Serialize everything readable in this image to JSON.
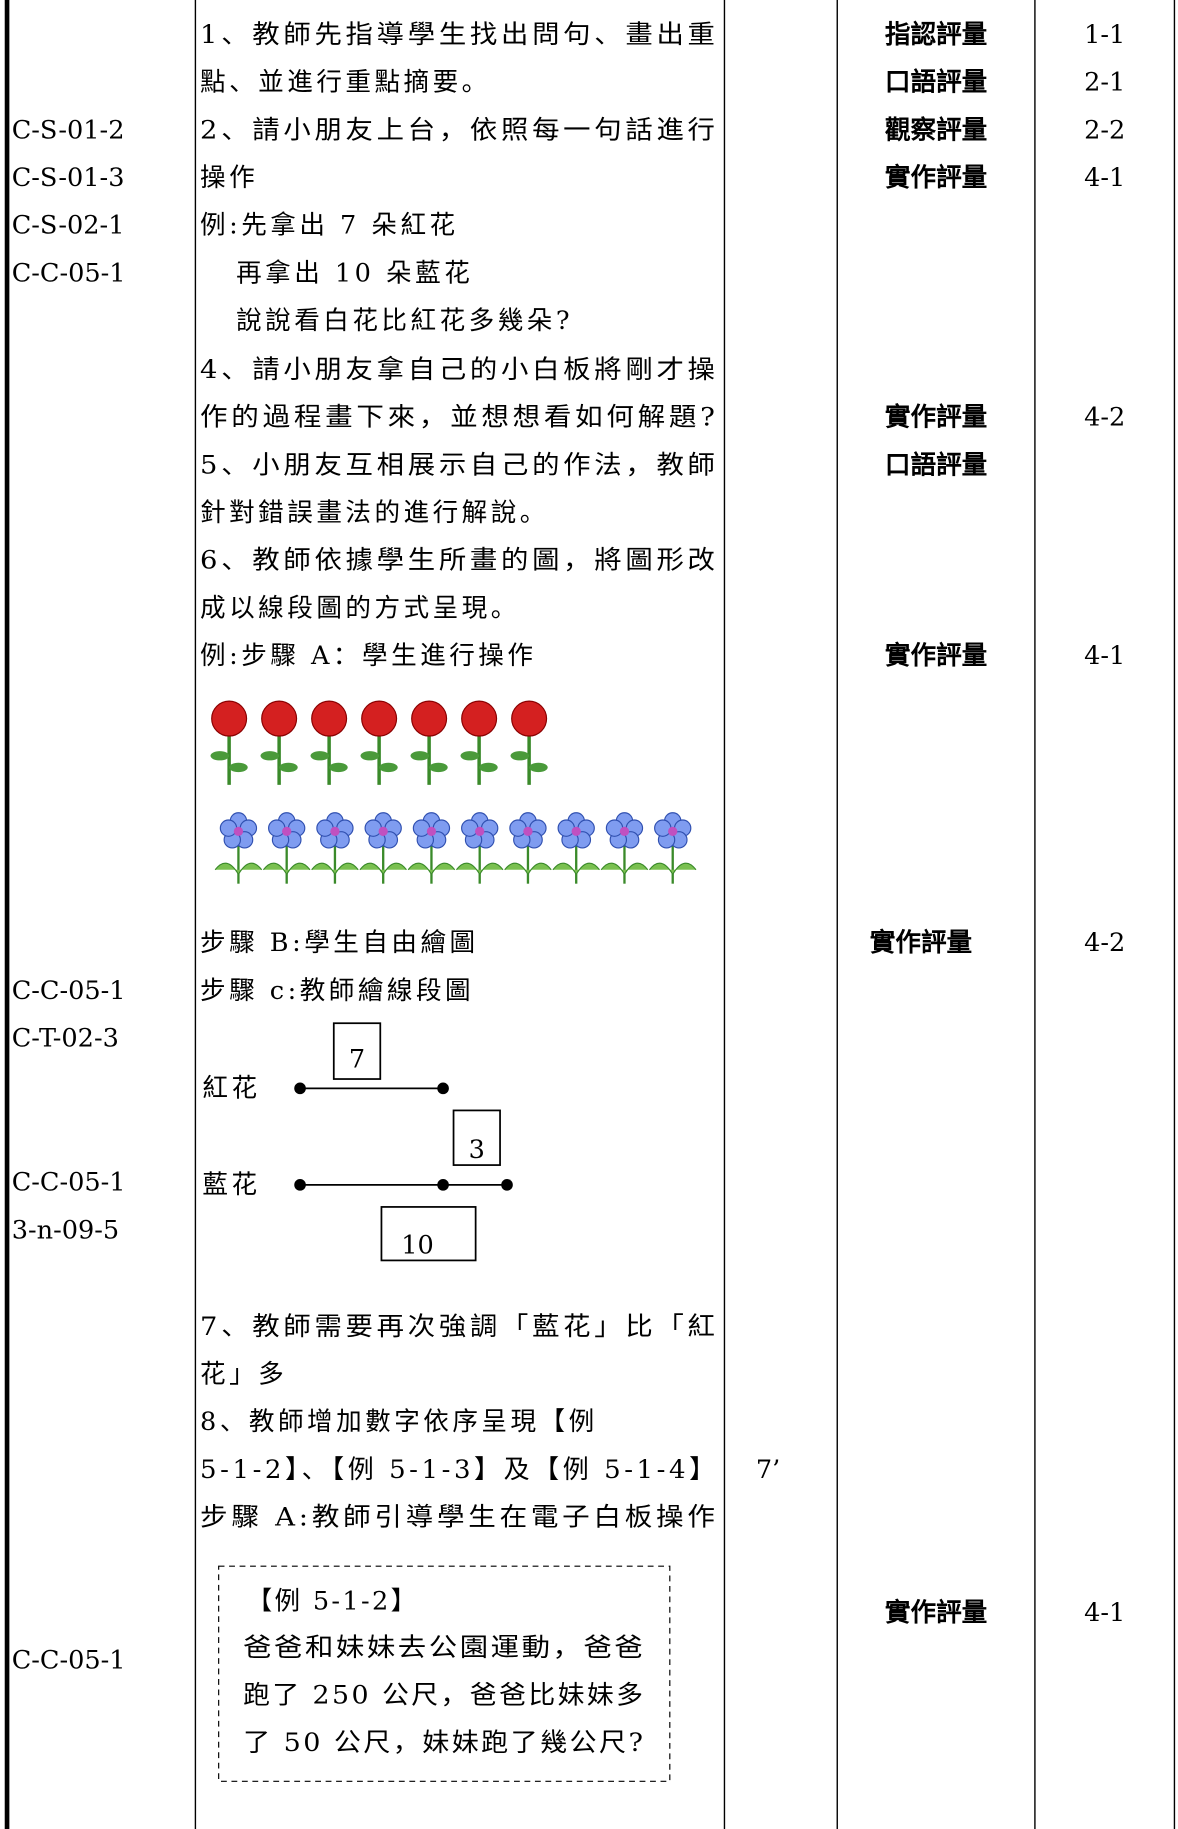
{
  "codes": [
    "C-S-01-2",
    "C-S-01-3",
    "C-S-02-1",
    "C-C-05-1",
    "C-C-05-1",
    "C-T-02-3",
    "C-C-05-1",
    "3-n-09-5",
    "C-C-05-1"
  ],
  "content": [
    "1、教師先指導學生找出問句、畫出重",
    "點、並進行重點摘要。",
    "2、請小朋友上台，依照每一句話進行",
    "操作",
    "例:先拿出 7 朵紅花",
    "再拿出 10 朵藍花",
    "說說看白花比紅花多幾朵?",
    "4、請小朋友拿自己的小白板將剛才操",
    "作的過程畫下來，並想想看如何解題?",
    "5、小朋友互相展示自己的作法，教師",
    "針對錯誤畫法的進行解說。",
    "6、教師依據學生所畫的圖，將圖形改",
    "成以線段圖的方式呈現。",
    "例:步驟 A：學生進行操作",
    "步驟 B:學生自由繪圖",
    "步驟 c:教師繪線段圖",
    "7、教師需要再次強調「藍花」比「紅",
    "花」多",
    "8、教師增加數字依序呈現【例",
    "5-1-2】、【例 5-1-3】及【例 5-1-4】",
    "步驟 A:教師引導學生在電子白板操作"
  ],
  "diagram": {
    "red_label": "紅花",
    "red_count": "7",
    "difference": "3",
    "blue_label": "藍花",
    "blue_count": "10"
  },
  "example_box": [
    "【例 5-1-2】",
    "爸爸和妹妹去公園運動，爸爸",
    "跑了 250 公尺，爸爸比妹妹多",
    "了 50 公尺，妹妹跑了幾公尺?"
  ],
  "time": "7’",
  "assessment": [
    "指認評量",
    "口語評量",
    "觀察評量",
    "實作評量",
    "實作評量",
    "口語評量",
    "實作評量",
    "實作評量",
    "實作評量"
  ],
  "indicators": [
    "1-1",
    "2-1",
    "2-2",
    "4-1",
    "4-2",
    "4-1",
    "4-2",
    "4-1"
  ]
}
